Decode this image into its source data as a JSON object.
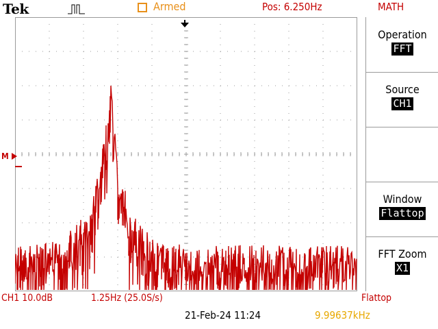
{
  "header": {
    "brand": "Tek",
    "trigger_icon": "pulse-trigger-icon",
    "status_indicator_icon": "armed-square-icon",
    "status": "Armed",
    "position": "Pos: 6.250Hz",
    "menu_title": "MATH"
  },
  "menu": [
    {
      "label": "Operation",
      "value": "FFT"
    },
    {
      "label": "Source",
      "value": "CH1"
    },
    {
      "label": "",
      "value": ""
    },
    {
      "label": "Window",
      "value": "Flattop"
    },
    {
      "label": "FFT Zoom",
      "value": "X1"
    }
  ],
  "footer": {
    "channel_scale": "CH1 10.0dB",
    "freq_scale": "1.25Hz (25.0S/s)",
    "window_type": "Flattop",
    "datetime": "21-Feb-24 11:24",
    "frequency_counter": "9.99637kHz"
  },
  "markers": {
    "math_ref": "M",
    "trigger_position_icon": "down-arrow-icon"
  },
  "colors": {
    "trace": "#c40000",
    "armed": "#e8901a",
    "counter": "#e8a800",
    "grid": "#9a9a9a"
  }
}
